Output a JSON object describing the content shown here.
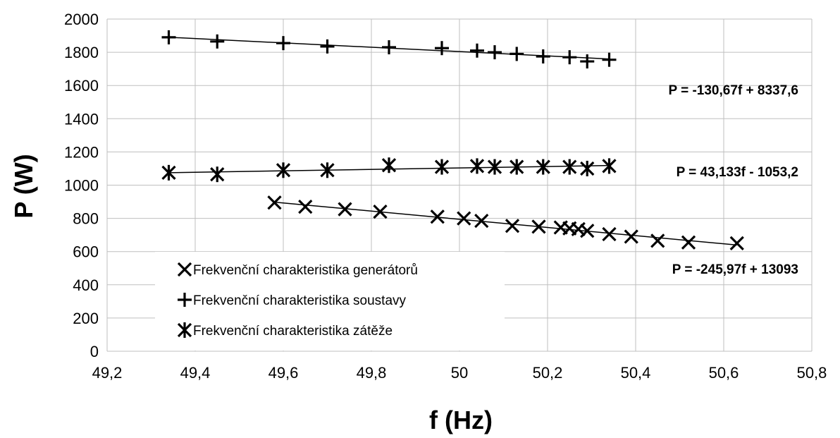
{
  "chart_data": {
    "type": "scatter",
    "title": "",
    "xlabel": "f (Hz)",
    "ylabel": "P (W)",
    "xlim": [
      49.2,
      50.8
    ],
    "ylim": [
      0,
      2000
    ],
    "x_ticks": [
      49.2,
      49.4,
      49.6,
      49.8,
      50.0,
      50.2,
      50.4,
      50.6,
      50.8
    ],
    "x_tick_labels": [
      "49,2",
      "49,4",
      "49,6",
      "49,8",
      "50",
      "50,2",
      "50,4",
      "50,6",
      "50,8"
    ],
    "y_ticks": [
      0,
      200,
      400,
      600,
      800,
      1000,
      1200,
      1400,
      1600,
      1800,
      2000
    ],
    "y_tick_labels": [
      "0",
      "200",
      "400",
      "600",
      "800",
      "1000",
      "1200",
      "1400",
      "1600",
      "1800",
      "2000"
    ],
    "grid": true,
    "legend_position": "bottom-left",
    "series": [
      {
        "name": "Frekvenční charakteristika generátorů",
        "marker": "x",
        "x": [
          49.58,
          49.65,
          49.74,
          49.82,
          49.95,
          50.01,
          50.05,
          50.12,
          50.18,
          50.23,
          50.25,
          50.27,
          50.29,
          50.34,
          50.39,
          50.45,
          50.52,
          50.63
        ],
        "y": [
          895,
          870,
          855,
          840,
          810,
          800,
          785,
          755,
          750,
          745,
          740,
          735,
          725,
          705,
          690,
          665,
          655,
          650
        ],
        "trendline": {
          "slope": -245.97,
          "intercept": 13093,
          "x_range": [
            49.58,
            50.63
          ]
        },
        "equation": "P = -245,97f + 13093"
      },
      {
        "name": "Frekvenční charakteristika soustavy",
        "marker": "plus",
        "x": [
          49.34,
          49.45,
          49.6,
          49.7,
          49.84,
          49.96,
          50.04,
          50.08,
          50.13,
          50.19,
          50.25,
          50.29,
          50.34
        ],
        "y": [
          1890,
          1865,
          1855,
          1835,
          1830,
          1825,
          1810,
          1800,
          1790,
          1775,
          1770,
          1745,
          1755
        ],
        "trendline": {
          "slope": -130.67,
          "intercept": 8337.6,
          "x_range": [
            49.34,
            50.34
          ]
        },
        "equation": "P = -130,67f + 8337,6"
      },
      {
        "name": "Frekvenční charakteristika zátěže",
        "marker": "asterisk",
        "x": [
          49.34,
          49.45,
          49.6,
          49.7,
          49.84,
          49.96,
          50.04,
          50.08,
          50.13,
          50.19,
          50.25,
          50.29,
          50.34
        ],
        "y": [
          1075,
          1065,
          1090,
          1090,
          1120,
          1110,
          1115,
          1110,
          1110,
          1110,
          1110,
          1100,
          1115
        ],
        "trendline": {
          "slope": 43.133,
          "intercept": -1053.2,
          "x_range": [
            49.34,
            50.34
          ]
        },
        "equation": "P = 43,133f - 1053,2"
      }
    ]
  }
}
